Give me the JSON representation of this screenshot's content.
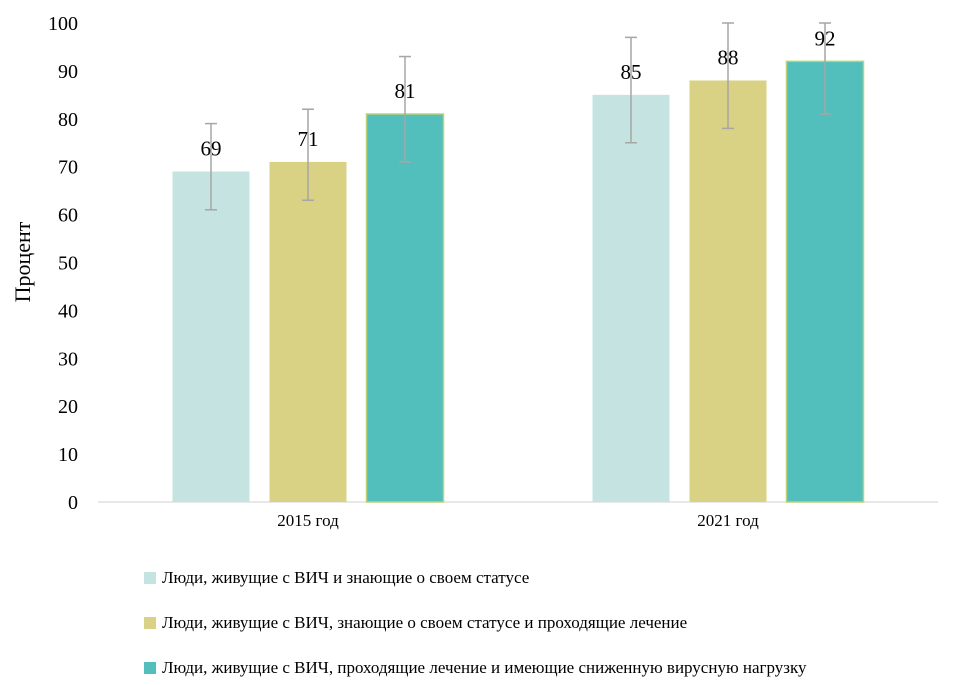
{
  "chart_data": {
    "type": "bar",
    "title": "",
    "xlabel": "",
    "ylabel": "Процент",
    "ylim": [
      0,
      100
    ],
    "yticks": [
      0,
      10,
      20,
      30,
      40,
      50,
      60,
      70,
      80,
      90,
      100
    ],
    "grid": false,
    "legend_position": "bottom",
    "categories": [
      "2015 год",
      "2021 год"
    ],
    "series": [
      {
        "name": "Люди, живущие с ВИЧ и знающие о своем статусе",
        "color": "#c5e4e1",
        "values": [
          69,
          85
        ],
        "error_low": [
          61,
          75
        ],
        "error_high": [
          79,
          97
        ]
      },
      {
        "name": "Люди, живущие с ВИЧ, знающие о своем статусе и проходящие лечение",
        "color": "#d9d184",
        "values": [
          71,
          88
        ],
        "error_low": [
          63,
          78
        ],
        "error_high": [
          82,
          100
        ]
      },
      {
        "name": "Люди, живущие с ВИЧ, проходящие лечение и имеющие сниженную вирусную нагрузку",
        "color": "#52bfbc",
        "values": [
          81,
          92
        ],
        "error_low": [
          71,
          81
        ],
        "error_high": [
          93,
          100
        ]
      }
    ]
  }
}
